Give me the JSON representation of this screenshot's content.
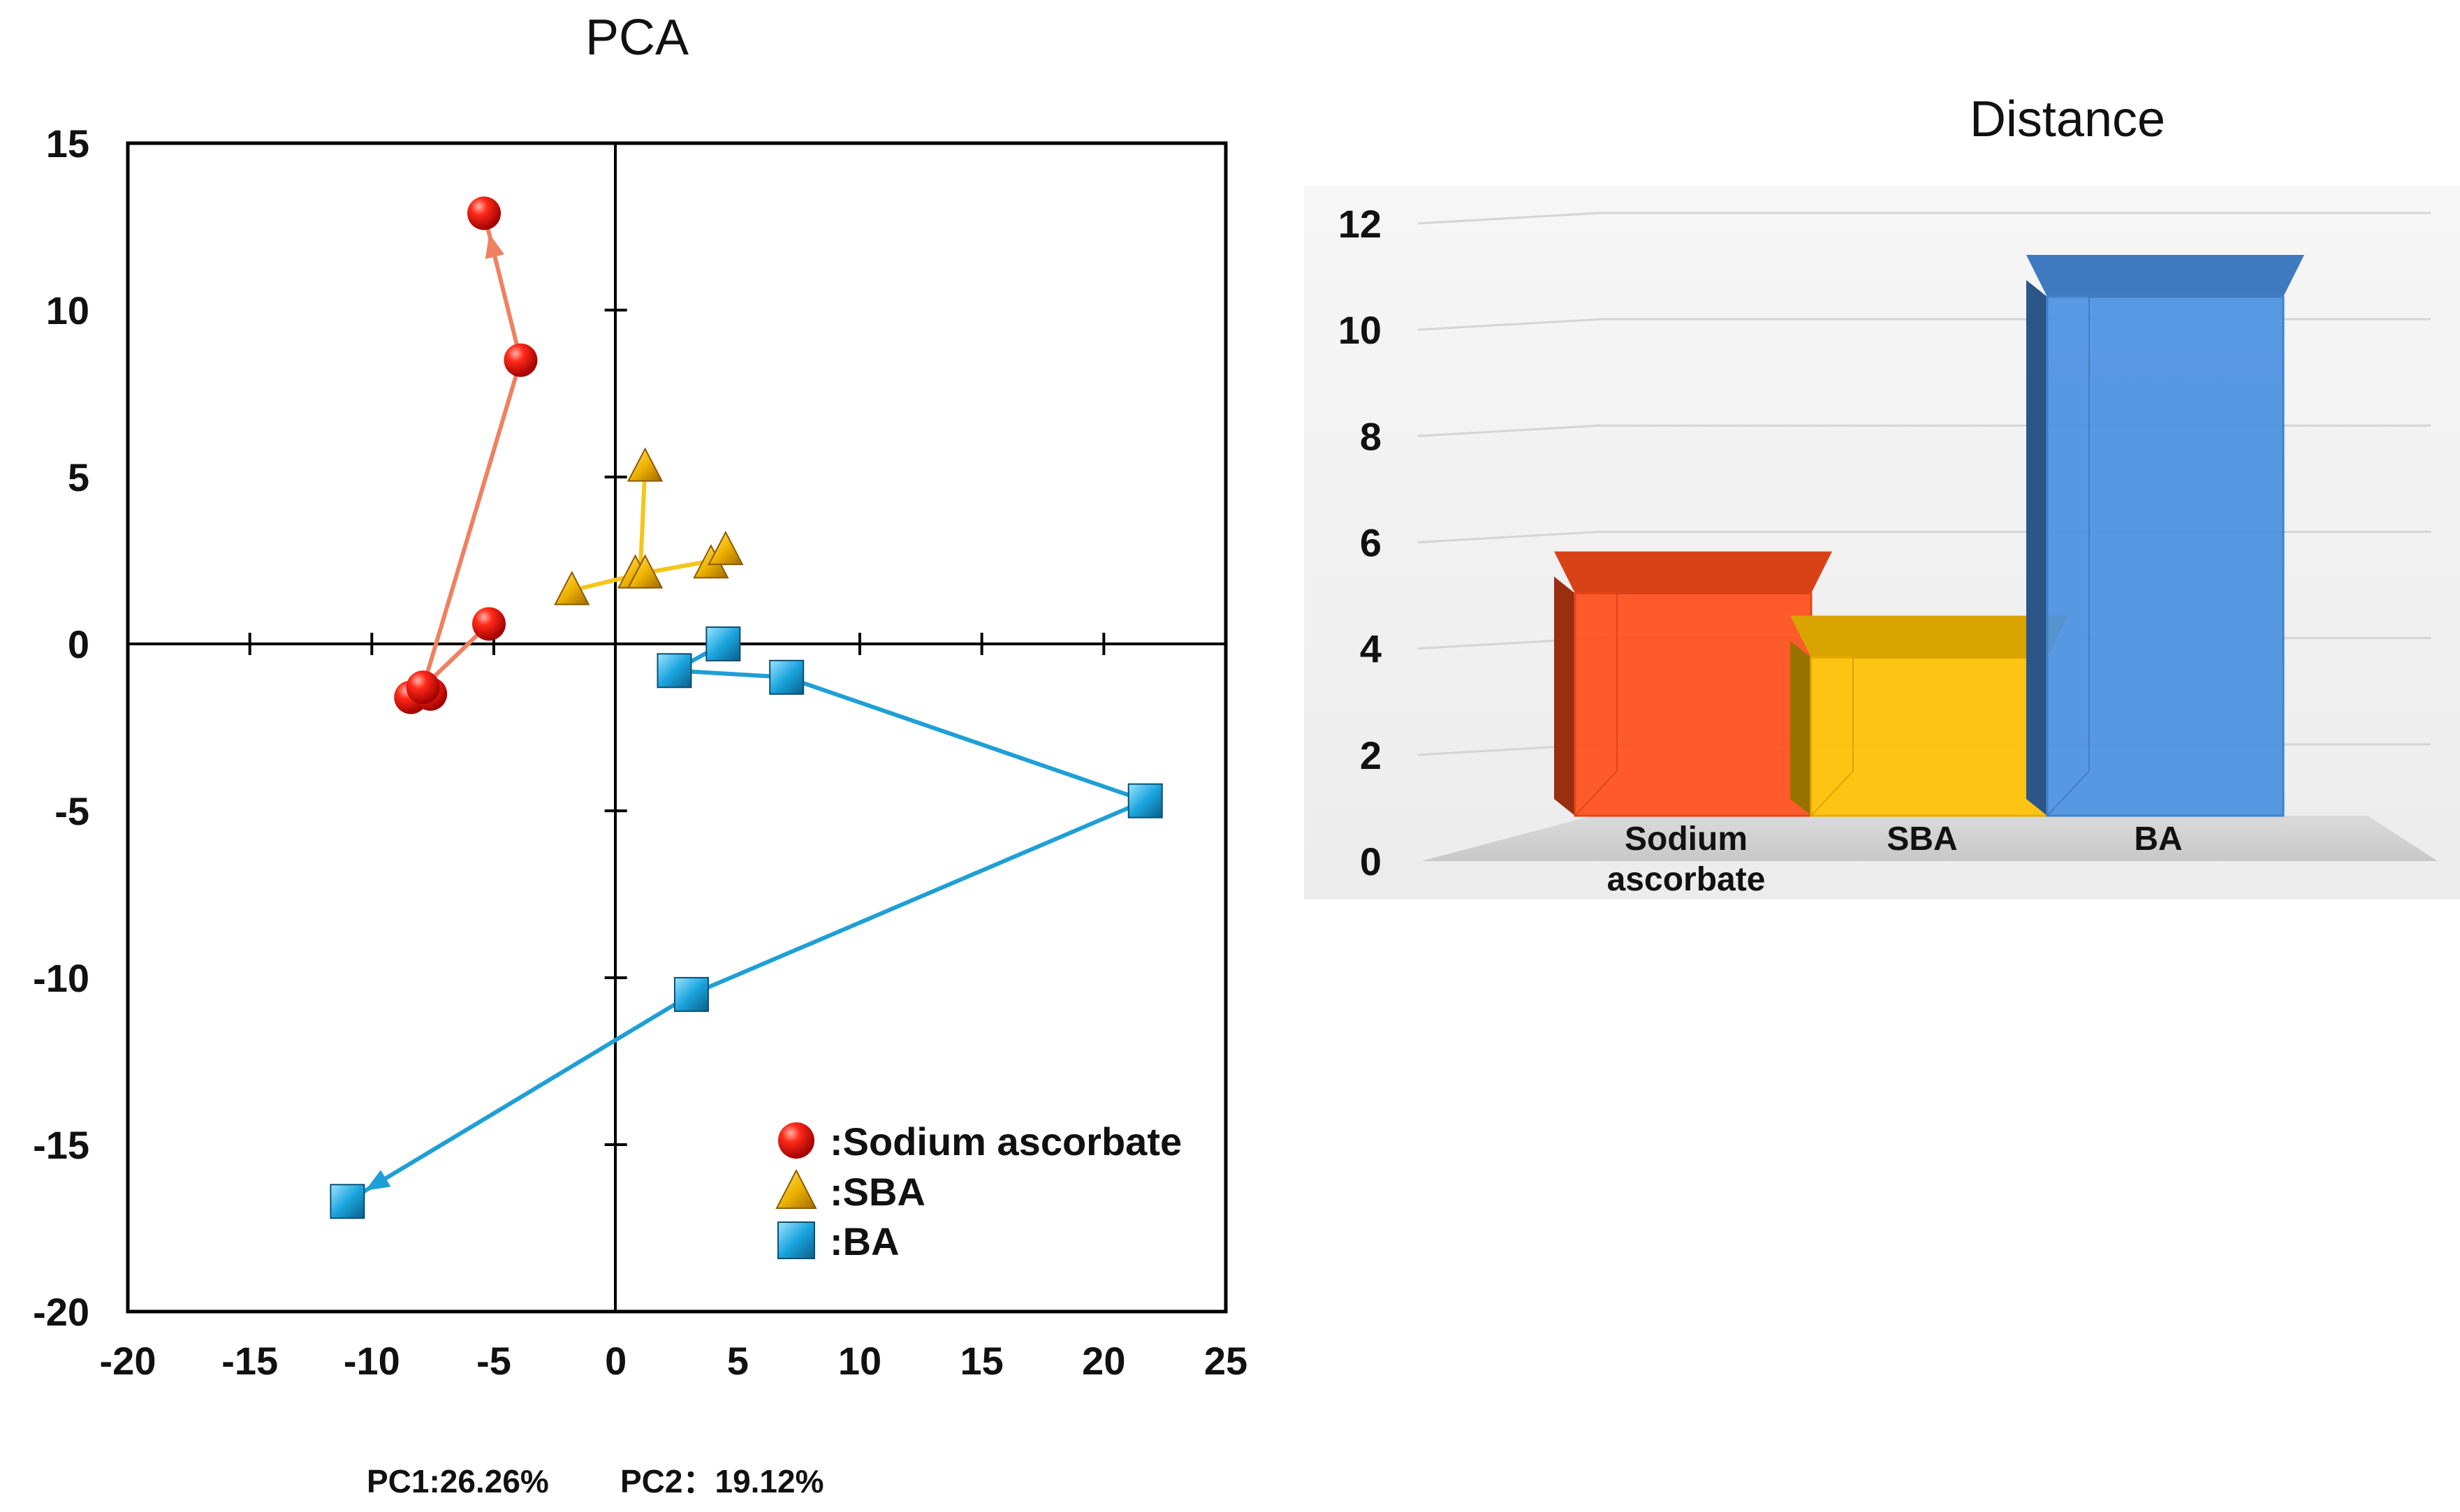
{
  "chart_data": [
    {
      "type": "scatter",
      "title": "PCA",
      "xlim": [
        -20,
        25
      ],
      "ylim": [
        -20,
        15
      ],
      "xticks": [
        "-20",
        "-15",
        "-10",
        "-5",
        "0",
        "5",
        "10",
        "15",
        "20",
        "25"
      ],
      "yticks": [
        "15",
        "10",
        "5",
        "0",
        "-5",
        "-10",
        "-15",
        "-20"
      ],
      "xtick_values": [
        -20,
        -15,
        -10,
        -5,
        0,
        5,
        10,
        15,
        20,
        25
      ],
      "ytick_values": [
        15,
        10,
        5,
        0,
        -5,
        -10,
        -15,
        -20
      ],
      "series": [
        {
          "name": ":Sodium ascorbate",
          "marker": "circle",
          "color": "#e8141b",
          "line_color": "#f08060",
          "points": [
            [
              -8.4,
              -1.6
            ],
            [
              -7.6,
              -1.5
            ],
            [
              -7.9,
              -1.3
            ],
            [
              -5.2,
              0.6
            ],
            [
              -3.9,
              8.5
            ],
            [
              -5.4,
              12.9
            ]
          ],
          "path": [
            [
              -5.2,
              0.6
            ],
            [
              -7.9,
              -1.3
            ],
            [
              -3.9,
              8.5
            ],
            [
              -5.4,
              12.9
            ]
          ]
        },
        {
          "name": ":SBA",
          "marker": "triangle",
          "color": "#f2b705",
          "line_color": "#f5c518",
          "points": [
            [
              -1.8,
              1.6
            ],
            [
              0.8,
              2.1
            ],
            [
              1.2,
              2.1
            ],
            [
              3.9,
              2.4
            ],
            [
              4.5,
              2.8
            ],
            [
              1.2,
              5.3
            ]
          ],
          "path": [
            [
              -1.8,
              1.6
            ],
            [
              1.0,
              2.1
            ],
            [
              4.0,
              2.5
            ],
            [
              1.0,
              2.1
            ],
            [
              1.2,
              5.3
            ]
          ]
        },
        {
          "name": ":BA",
          "marker": "square",
          "color": "#1e9fd6",
          "line_color": "#1e9fd6",
          "points": [
            [
              4.4,
              0.0
            ],
            [
              2.4,
              -0.8
            ],
            [
              7.0,
              -1.0
            ],
            [
              21.7,
              -4.7
            ],
            [
              3.1,
              -10.5
            ],
            [
              -11.0,
              -16.7
            ]
          ],
          "path": [
            [
              4.4,
              0.0
            ],
            [
              2.4,
              -0.8
            ],
            [
              7.0,
              -1.0
            ],
            [
              21.7,
              -4.7
            ],
            [
              3.1,
              -10.5
            ],
            [
              -11.0,
              -16.7
            ]
          ]
        }
      ],
      "arrows": [
        {
          "series": ":Sodium ascorbate",
          "from": [
            -3.9,
            8.5
          ],
          "to": [
            -5.4,
            12.9
          ]
        },
        {
          "series": ":BA",
          "from": [
            3.1,
            -10.5
          ],
          "to": [
            -11.0,
            -16.7
          ]
        }
      ],
      "variance": {
        "pc1": "PC1:26.26%",
        "pc2": "PC2：19.12%"
      }
    },
    {
      "type": "bar",
      "style": "3d",
      "title": "Distance",
      "categories": [
        "Sodium ascorbate",
        "SBA",
        "BA"
      ],
      "category_lines": [
        [
          "Sodium",
          "ascorbate"
        ],
        [
          "SBA"
        ],
        [
          "BA"
        ]
      ],
      "values": [
        4.5,
        3.2,
        10.5
      ],
      "colors": [
        "#ff4d1a",
        "#ffc000",
        "#4a90e2"
      ],
      "ylim": [
        0,
        12
      ],
      "yticks": [
        "0",
        "2",
        "4",
        "6",
        "8",
        "10",
        "12"
      ],
      "ytick_values": [
        0,
        2,
        4,
        6,
        8,
        10,
        12
      ],
      "grid": true
    }
  ]
}
